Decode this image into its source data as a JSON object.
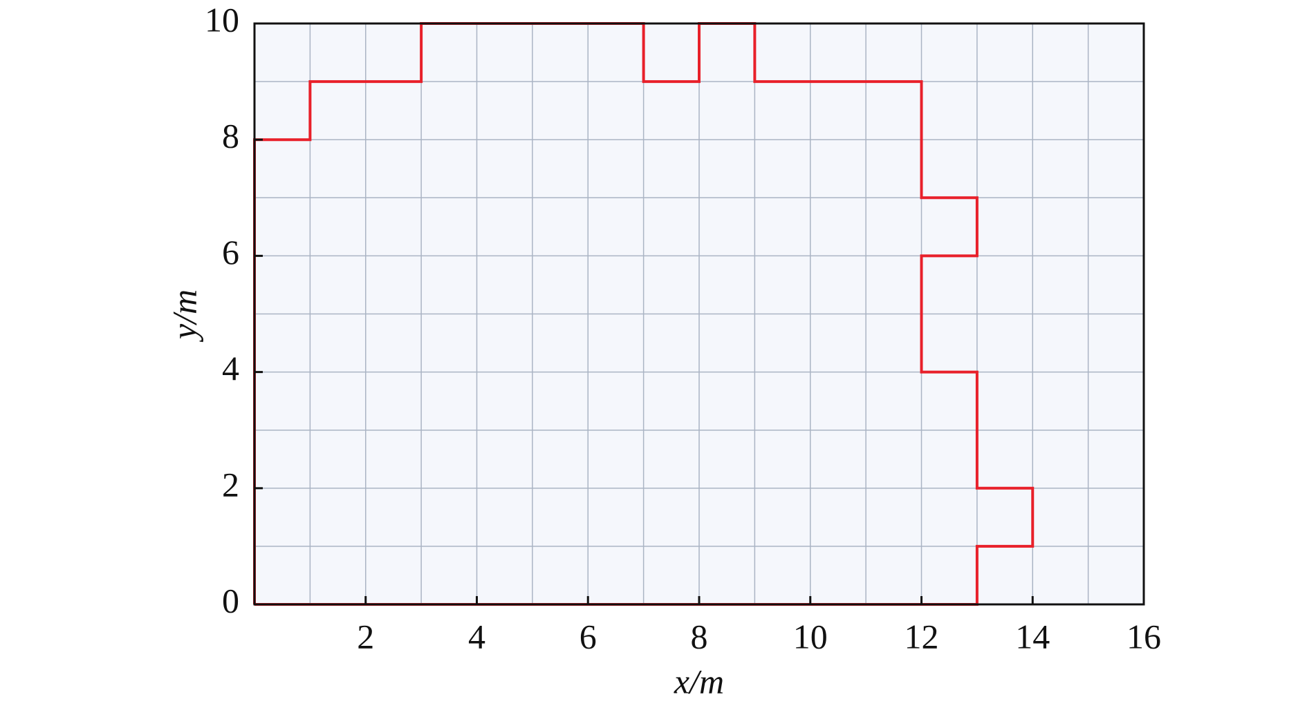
{
  "chart_data": {
    "type": "line",
    "xlabel": "x/m",
    "ylabel": "y/m",
    "x": [
      0,
      0,
      1,
      1,
      3,
      3,
      7,
      7,
      8,
      8,
      9,
      9,
      12,
      12,
      13,
      13,
      12,
      12,
      13,
      13,
      14,
      14,
      13,
      13,
      0
    ],
    "series": [
      {
        "color": "#e8202a",
        "values": [
          0,
          8,
          8,
          9,
          9,
          10,
          10,
          9,
          9,
          10,
          10,
          9,
          9,
          7,
          7,
          6,
          6,
          4,
          4,
          2,
          2,
          1,
          1,
          0,
          0
        ]
      }
    ],
    "xlim": [
      0,
      16
    ],
    "xticks": [
      2,
      4,
      6,
      8,
      10,
      12,
      14,
      16
    ],
    "ylim": [
      0,
      10
    ],
    "yticks": [
      0,
      2,
      4,
      6,
      8,
      10
    ],
    "grid": true,
    "grid_step": 1
  }
}
